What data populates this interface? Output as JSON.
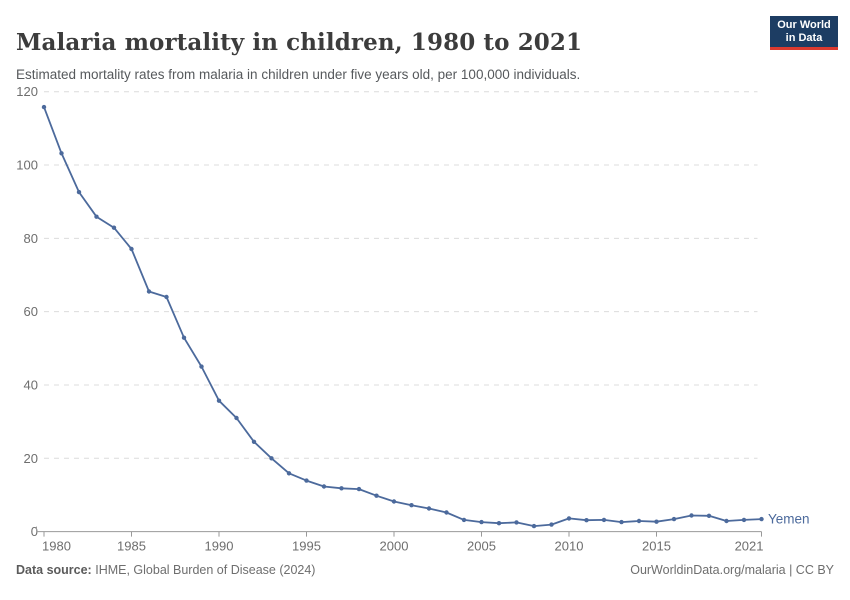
{
  "header": {
    "title": "Malaria mortality in children, 1980 to 2021",
    "subtitle": "Estimated mortality rates from malaria in children under five years old, per 100,000 individuals."
  },
  "logo": {
    "line1": "Our World",
    "line2": "in Data",
    "bg_color": "#1d3d63",
    "bar_color": "#dc3a2f"
  },
  "footer": {
    "datasource_label": "Data source:",
    "datasource_value": "IHME, Global Burden of Disease (2024)",
    "credit": "OurWorldinData.org/malaria | CC BY"
  },
  "chart_data": {
    "type": "line",
    "title": "Malaria mortality in children, 1980 to 2021",
    "xlabel": "",
    "ylabel": "",
    "ylim": [
      0,
      120
    ],
    "yticks": [
      0,
      20,
      40,
      60,
      80,
      100,
      120
    ],
    "xticks": [
      1980,
      1985,
      1990,
      1995,
      2000,
      2005,
      2010,
      2015,
      2021
    ],
    "grid": "horizontal-dashed",
    "legend_position": "end-of-line",
    "x": [
      1980,
      1981,
      1982,
      1983,
      1984,
      1985,
      1986,
      1987,
      1988,
      1989,
      1990,
      1991,
      1992,
      1993,
      1994,
      1995,
      1996,
      1997,
      1998,
      1999,
      2000,
      2001,
      2002,
      2003,
      2004,
      2005,
      2006,
      2007,
      2008,
      2009,
      2010,
      2011,
      2012,
      2013,
      2014,
      2015,
      2016,
      2017,
      2018,
      2019,
      2020,
      2021
    ],
    "series": [
      {
        "name": "Yemen",
        "color": "#4c6a9c",
        "values": [
          115.8,
          103.2,
          92.6,
          85.9,
          82.9,
          77.1,
          65.5,
          64.0,
          52.9,
          45.0,
          35.7,
          31.0,
          24.5,
          20.0,
          15.9,
          13.9,
          12.3,
          11.8,
          11.6,
          9.8,
          8.2,
          7.2,
          6.3,
          5.2,
          3.2,
          2.6,
          2.3,
          2.5,
          1.5,
          1.9,
          3.6,
          3.1,
          3.2,
          2.6,
          2.9,
          2.7,
          3.4,
          4.4,
          4.3,
          2.9,
          3.2,
          3.4
        ]
      }
    ],
    "colors": {
      "gridline": "#dcdcdc",
      "axis": "#999999",
      "tick_label": "#6e6e6e"
    }
  }
}
